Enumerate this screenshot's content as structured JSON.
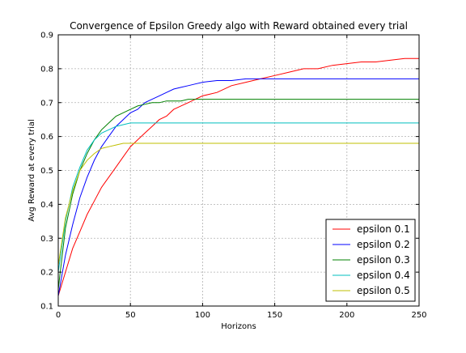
{
  "chart_data": {
    "type": "line",
    "title": "Convergence of Epsilon Greedy algo with Reward obtained every trial",
    "xlabel": "Horizons",
    "ylabel": "Avg Reward at every trial",
    "xlim": [
      0,
      250
    ],
    "ylim": [
      0.1,
      0.9
    ],
    "xticks": [
      0,
      50,
      100,
      150,
      200,
      250
    ],
    "yticks": [
      0.1,
      0.2,
      0.3,
      0.4,
      0.5,
      0.6,
      0.7,
      0.8,
      0.9
    ],
    "xtick_labels": [
      "0",
      "50",
      "100",
      "150",
      "200",
      "250"
    ],
    "ytick_labels": [
      "0.1",
      "0.2",
      "0.3",
      "0.4",
      "0.5",
      "0.6",
      "0.7",
      "0.8",
      "0.9"
    ],
    "grid": true,
    "legend_position": "bottom-right",
    "x": [
      0,
      5,
      10,
      15,
      20,
      25,
      30,
      35,
      40,
      45,
      50,
      55,
      60,
      65,
      70,
      75,
      80,
      85,
      90,
      95,
      100,
      110,
      120,
      130,
      140,
      150,
      160,
      170,
      180,
      190,
      200,
      210,
      220,
      230,
      240,
      250
    ],
    "series": [
      {
        "name": "epsilon 0.1",
        "color": "#ff0000",
        "values": [
          0.13,
          0.2,
          0.27,
          0.32,
          0.37,
          0.41,
          0.45,
          0.48,
          0.51,
          0.54,
          0.57,
          0.59,
          0.61,
          0.63,
          0.65,
          0.66,
          0.68,
          0.69,
          0.7,
          0.71,
          0.72,
          0.73,
          0.75,
          0.76,
          0.77,
          0.78,
          0.79,
          0.8,
          0.8,
          0.81,
          0.815,
          0.82,
          0.82,
          0.825,
          0.83,
          0.83
        ]
      },
      {
        "name": "epsilon 0.2",
        "color": "#0000ff",
        "values": [
          0.13,
          0.25,
          0.34,
          0.42,
          0.48,
          0.53,
          0.57,
          0.6,
          0.63,
          0.65,
          0.67,
          0.68,
          0.7,
          0.71,
          0.72,
          0.73,
          0.74,
          0.745,
          0.75,
          0.755,
          0.76,
          0.765,
          0.765,
          0.77,
          0.77,
          0.77,
          0.77,
          0.77,
          0.77,
          0.77,
          0.77,
          0.77,
          0.77,
          0.77,
          0.77,
          0.77
        ]
      },
      {
        "name": "epsilon 0.3",
        "color": "#008000",
        "values": [
          0.15,
          0.33,
          0.43,
          0.5,
          0.55,
          0.59,
          0.62,
          0.64,
          0.66,
          0.67,
          0.68,
          0.69,
          0.695,
          0.7,
          0.7,
          0.705,
          0.705,
          0.705,
          0.71,
          0.71,
          0.71,
          0.71,
          0.71,
          0.71,
          0.71,
          0.71,
          0.71,
          0.71,
          0.71,
          0.71,
          0.71,
          0.71,
          0.71,
          0.71,
          0.71,
          0.71
        ]
      },
      {
        "name": "epsilon 0.4",
        "color": "#00bfbf",
        "values": [
          0.2,
          0.35,
          0.45,
          0.51,
          0.56,
          0.59,
          0.61,
          0.62,
          0.63,
          0.635,
          0.64,
          0.64,
          0.64,
          0.64,
          0.64,
          0.64,
          0.64,
          0.64,
          0.64,
          0.64,
          0.64,
          0.64,
          0.64,
          0.64,
          0.64,
          0.64,
          0.64,
          0.64,
          0.64,
          0.64,
          0.64,
          0.64,
          0.64,
          0.64,
          0.64,
          0.64
        ]
      },
      {
        "name": "epsilon 0.5",
        "color": "#bfbf00",
        "values": [
          0.22,
          0.36,
          0.44,
          0.5,
          0.53,
          0.55,
          0.565,
          0.57,
          0.575,
          0.58,
          0.58,
          0.58,
          0.58,
          0.58,
          0.58,
          0.58,
          0.58,
          0.58,
          0.58,
          0.58,
          0.58,
          0.58,
          0.58,
          0.58,
          0.58,
          0.58,
          0.58,
          0.58,
          0.58,
          0.58,
          0.58,
          0.58,
          0.58,
          0.58,
          0.58,
          0.58
        ]
      }
    ]
  }
}
